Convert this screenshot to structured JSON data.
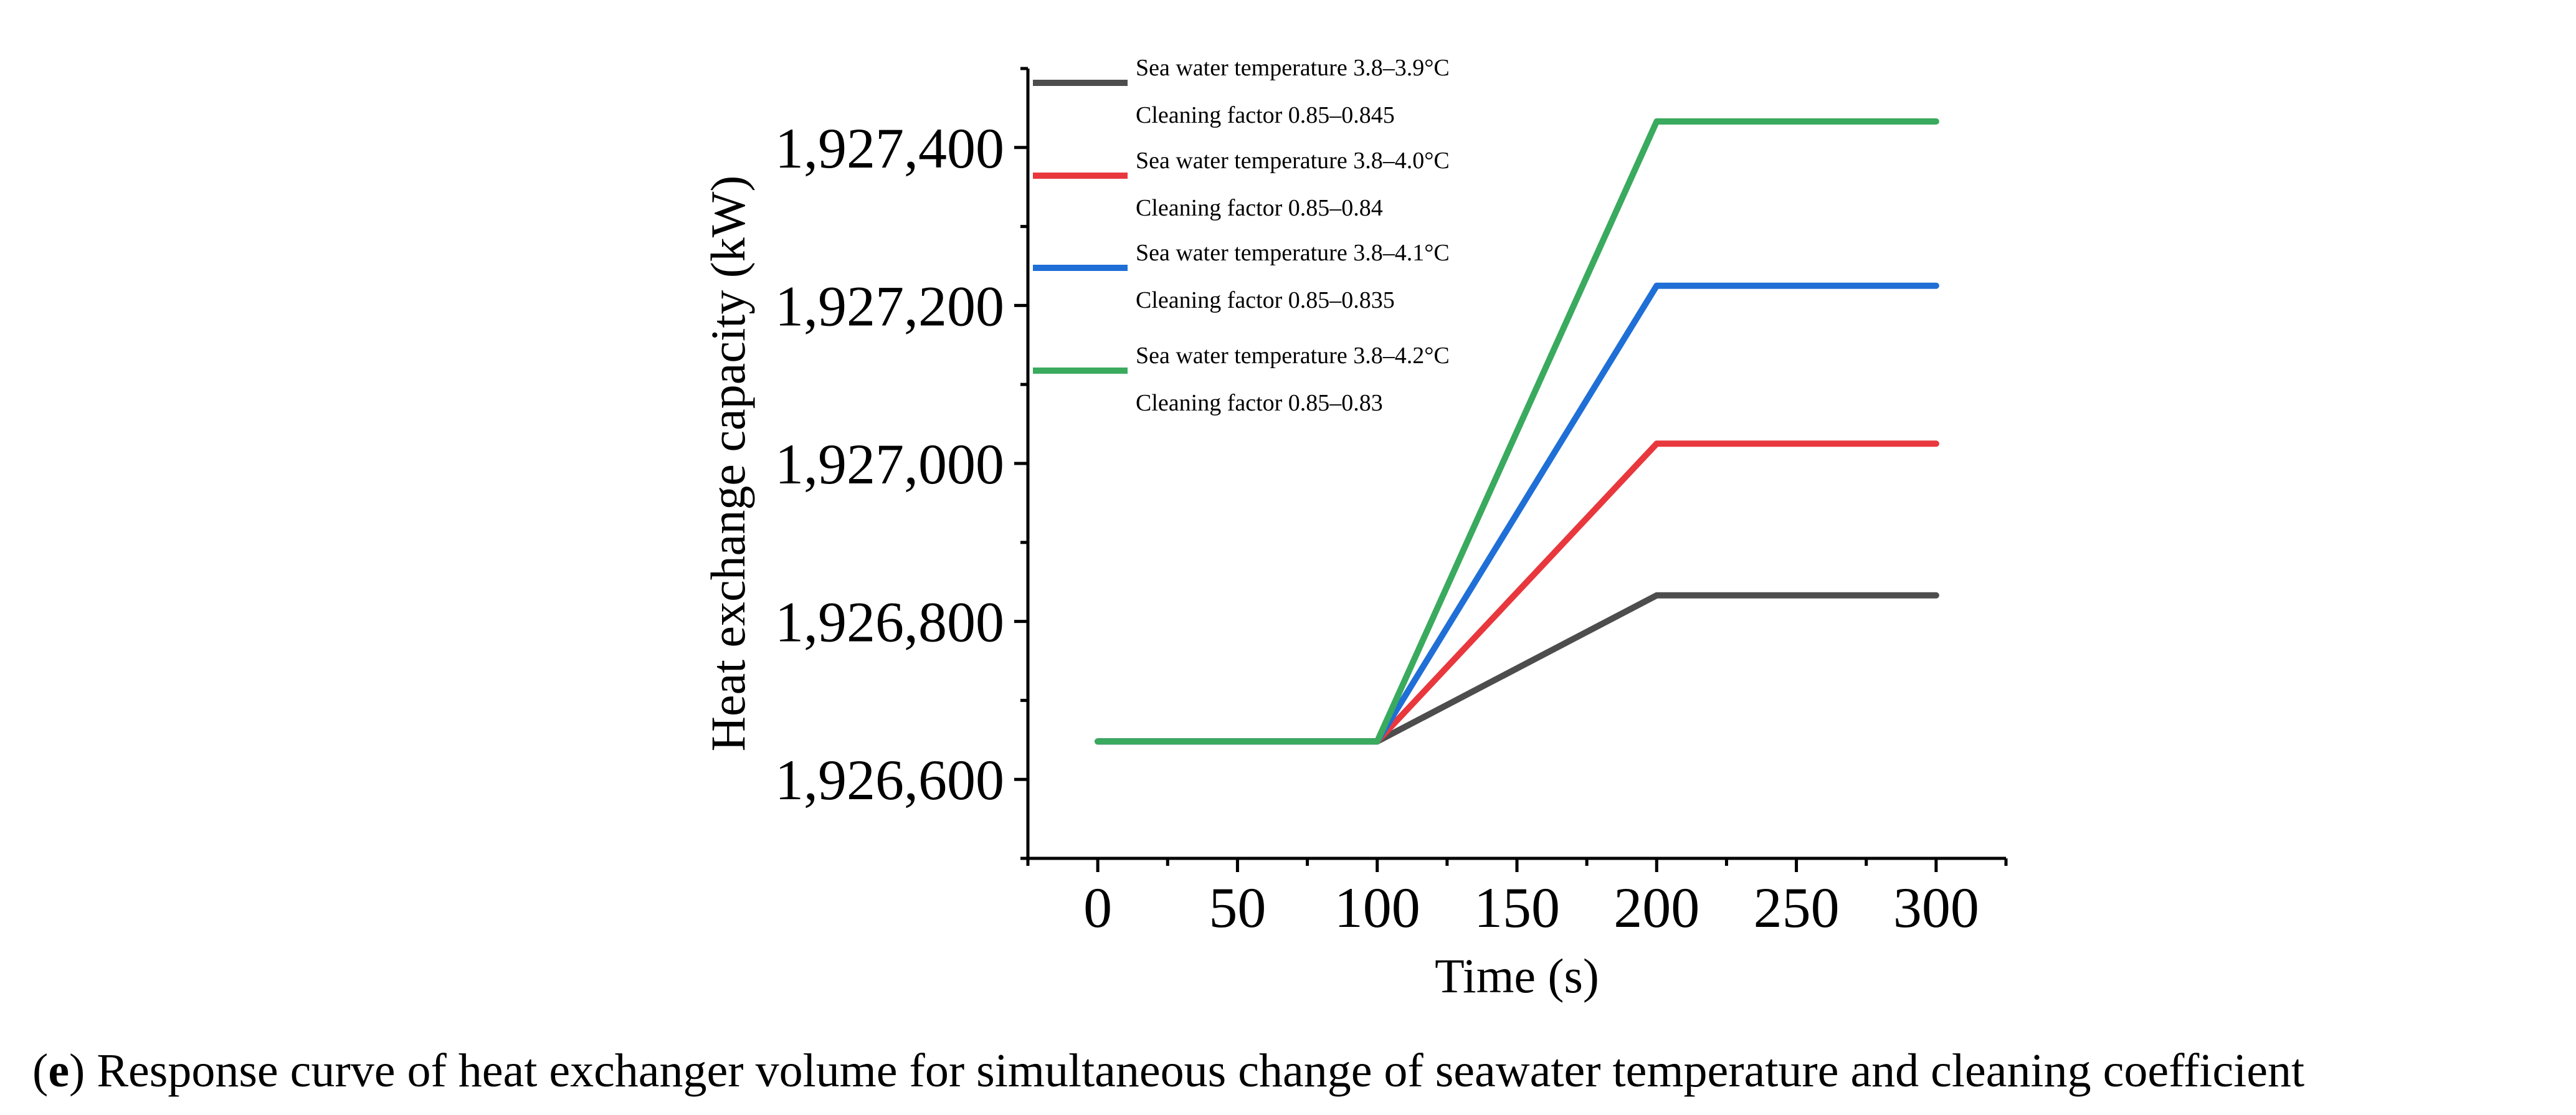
{
  "chart_data": {
    "type": "line",
    "title": "",
    "xlabel": "Time (s)",
    "ylabel": "Heat exchange capacity (kW)",
    "xlim": [
      -25,
      325
    ],
    "ylim": [
      1926500,
      1927500
    ],
    "xticks": [
      0,
      50,
      100,
      150,
      200,
      250,
      300
    ],
    "xtick_labels": [
      "0",
      "50",
      "100",
      "150",
      "200",
      "250",
      "300"
    ],
    "yticks": [
      1926600,
      1926800,
      1927000,
      1927200,
      1927400
    ],
    "ytick_labels": [
      "1,926,600",
      "1,926,800",
      "1,927,000",
      "1,927,200",
      "1,927,400"
    ],
    "x": [
      0,
      100,
      200,
      300
    ],
    "series": [
      {
        "name": "Sea water temperature 3.8–3.9°C / Cleaning factor 0.85–0.845",
        "line1": "Sea water temperature 3.8–3.9°C",
        "line2": "Cleaning factor 0.85–0.845",
        "color": "#4d4d4d",
        "values": [
          1926648,
          1926648,
          1926833,
          1926833
        ]
      },
      {
        "name": "Sea water temperature 3.8–4.0°C / Cleaning factor 0.85–0.84",
        "line1": "Sea water temperature 3.8–4.0°C",
        "line2": "Cleaning factor 0.85–0.84",
        "color": "#e8383d",
        "values": [
          1926648,
          1926648,
          1927025,
          1927025
        ]
      },
      {
        "name": "Sea water temperature 3.8–4.1°C / Cleaning factor 0.85–0.835",
        "line1": "Sea water temperature 3.8–4.1°C",
        "line2": "Cleaning factor 0.85–0.835",
        "color": "#1f6fd6",
        "values": [
          1926648,
          1926648,
          1927225,
          1927225
        ]
      },
      {
        "name": "Sea water temperature 3.8–4.2°C / Cleaning factor 0.85–0.83",
        "line1": "Sea water temperature 3.8–4.2°C",
        "line2": "Cleaning factor 0.85–0.83",
        "color": "#3aaa5e",
        "values": [
          1926648,
          1926648,
          1927433,
          1927433
        ]
      }
    ],
    "legend": "top-left"
  },
  "caption": {
    "label": "e",
    "text": " Response curve of heat exchanger volume for simultaneous change of seawater temperature and cleaning coefficient"
  }
}
